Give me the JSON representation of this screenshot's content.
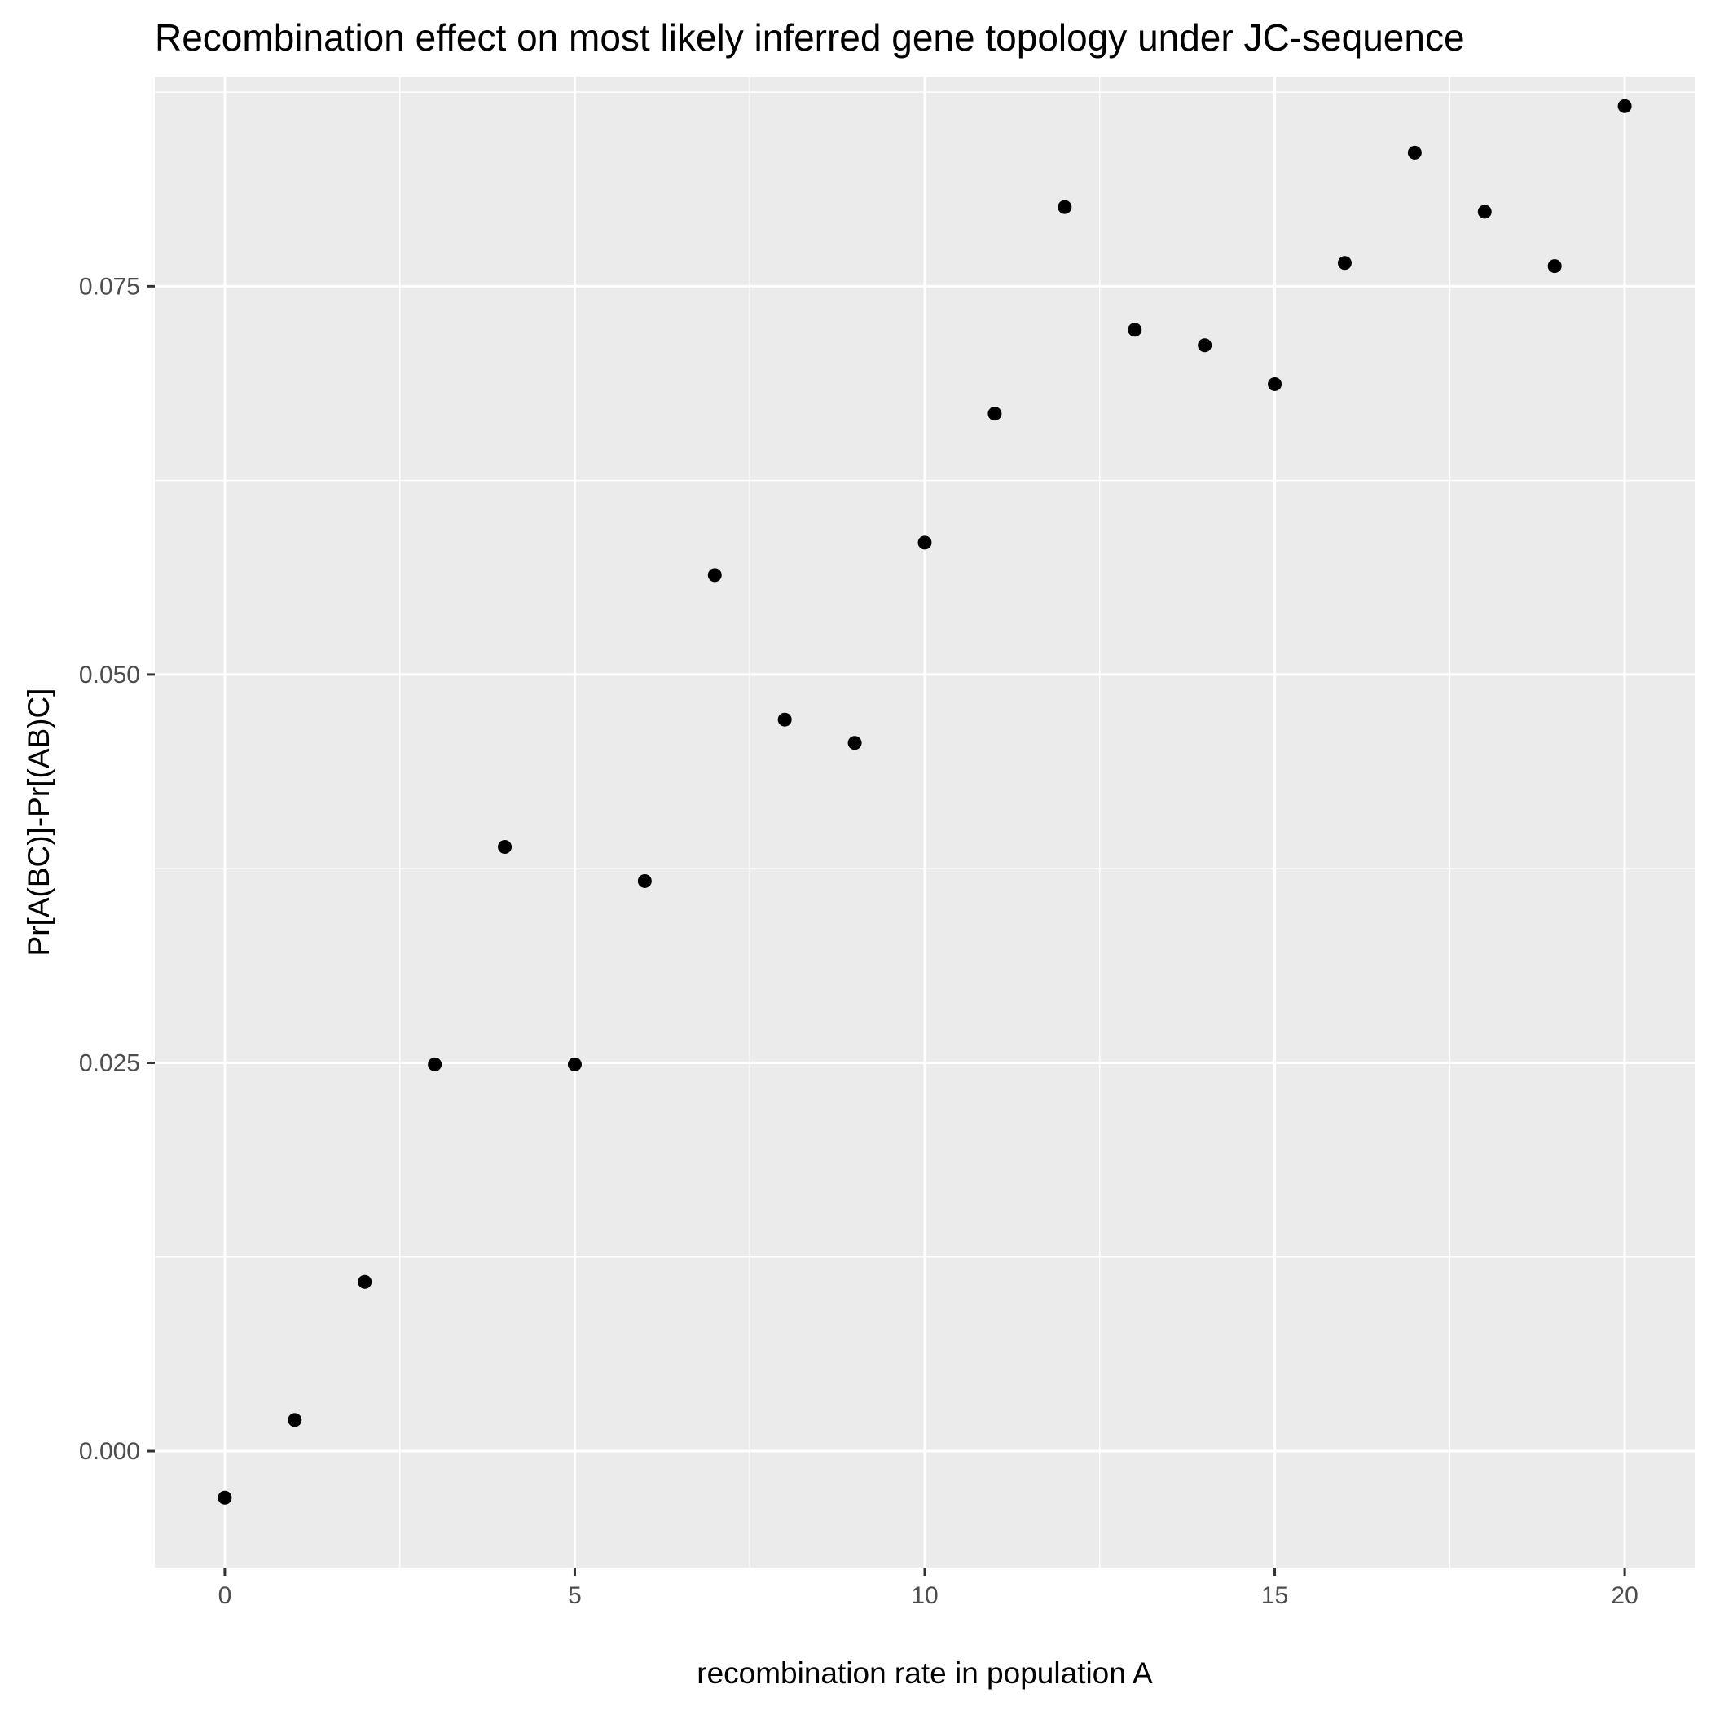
{
  "chart_data": {
    "type": "scatter",
    "title": "Recombination effect on most likely inferred gene topology under JC-sequence",
    "xlabel": "recombination rate in population A",
    "ylabel": "Pr[A(BC)]-Pr[(AB)C]",
    "xlim": [
      -1,
      21
    ],
    "ylim": [
      -0.0075,
      0.0885
    ],
    "x_ticks": [
      0,
      5,
      10,
      15,
      20
    ],
    "x_tick_labels": [
      "0",
      "5",
      "10",
      "15",
      "20"
    ],
    "y_ticks": [
      0,
      0.025,
      0.05,
      0.075
    ],
    "y_tick_labels": [
      "0.000",
      "0.025",
      "0.050",
      "0.075"
    ],
    "grid": true,
    "legend": "none",
    "colors": {
      "panel_background": "#ebebeb",
      "grid": "#ffffff",
      "points": "#000000",
      "tick_label": "#4d4d4d",
      "tick_mark": "#333333"
    },
    "series": [
      {
        "x": [
          0,
          1,
          2,
          3,
          4,
          5,
          6,
          7,
          8,
          9,
          10,
          11,
          12,
          13,
          14,
          15,
          16,
          17,
          18,
          19,
          20
        ],
        "y": [
          -0.003,
          0.002,
          0.0109,
          0.0249,
          0.0389,
          0.0249,
          0.0367,
          0.0564,
          0.0471,
          0.0456,
          0.0585,
          0.0668,
          0.0801,
          0.0722,
          0.0712,
          0.0687,
          0.0765,
          0.0836,
          0.0798,
          0.0763,
          0.0866
        ]
      }
    ]
  }
}
